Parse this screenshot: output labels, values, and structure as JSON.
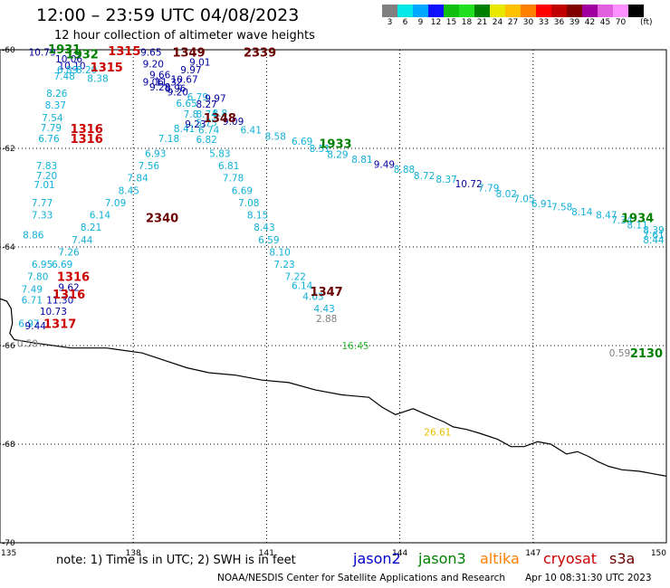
{
  "header": {
    "title": "12:00 – 23:59 UTC 04/08/2023",
    "subtitle": "12 hour collection of altimeter wave heights"
  },
  "color_scale": {
    "unit": "(ft)",
    "swatches": [
      {
        "color": "#808080",
        "label": "3"
      },
      {
        "color": "#00e8e8",
        "label": "6"
      },
      {
        "color": "#00a8ff",
        "label": "9"
      },
      {
        "color": "#1010ff",
        "label": "12"
      },
      {
        "color": "#10c010",
        "label": "15"
      },
      {
        "color": "#20e020",
        "label": "18"
      },
      {
        "color": "#008000",
        "label": "21"
      },
      {
        "color": "#e8e800",
        "label": "24"
      },
      {
        "color": "#ffc000",
        "label": "27"
      },
      {
        "color": "#ff8000",
        "label": "30"
      },
      {
        "color": "#ff0000",
        "label": "33"
      },
      {
        "color": "#c00000",
        "label": "36"
      },
      {
        "color": "#800000",
        "label": "39"
      },
      {
        "color": "#a000a0",
        "label": "42"
      },
      {
        "color": "#e060e0",
        "label": "45"
      },
      {
        "color": "#ff90ff",
        "label": "70"
      },
      {
        "color": "#000000",
        "label": ""
      }
    ]
  },
  "axes": {
    "lat_labels": [
      "-60",
      "-62",
      "-64",
      "-66",
      "-68",
      "-70"
    ],
    "lon_labels": [
      "135",
      "138",
      "141",
      "144",
      "147",
      "150"
    ]
  },
  "map_data": {
    "lon_range": [
      135,
      150
    ],
    "lat_range": [
      -70,
      -60
    ],
    "colors": {
      "jason2": "#0000a0",
      "jason3": "#008000",
      "altika": "#ff8000",
      "cryosat": "#cc0000",
      "s3a": "#6b0000",
      "swh_cyan": "#10b0d8",
      "swh_gray": "#808080",
      "swh_green": "#30c030",
      "swh_yellow": "#e8c000"
    },
    "observations": [
      {
        "lon": 135.95,
        "lat": -60.05,
        "text": "10.79",
        "color": "#0000a0"
      },
      {
        "lon": 136.55,
        "lat": -60.18,
        "text": "10.06",
        "color": "#0000a0"
      },
      {
        "lon": 136.62,
        "lat": -60.32,
        "text": "10.10",
        "color": "#0000a0"
      },
      {
        "lon": 136.52,
        "lat": -60.4,
        "text": "6.89",
        "color": "#10b0d8"
      },
      {
        "lon": 136.45,
        "lat": -60.53,
        "text": "7.48",
        "color": "#10b0d8"
      },
      {
        "lon": 136.28,
        "lat": -60.88,
        "text": "8.26",
        "color": "#10b0d8"
      },
      {
        "lon": 136.25,
        "lat": -61.12,
        "text": "8.37",
        "color": "#10b0d8"
      },
      {
        "lon": 136.18,
        "lat": -61.38,
        "text": "7.54",
        "color": "#10b0d8"
      },
      {
        "lon": 136.15,
        "lat": -61.58,
        "text": "7.79",
        "color": "#10b0d8"
      },
      {
        "lon": 136.1,
        "lat": -61.8,
        "text": "6.76",
        "color": "#10b0d8"
      },
      {
        "lon": 136.05,
        "lat": -62.35,
        "text": "7.83",
        "color": "#10b0d8"
      },
      {
        "lon": 136.05,
        "lat": -62.55,
        "text": "7.20",
        "color": "#10b0d8"
      },
      {
        "lon": 136.0,
        "lat": -62.73,
        "text": "7.01",
        "color": "#10b0d8"
      },
      {
        "lon": 135.95,
        "lat": -63.1,
        "text": "7.77",
        "color": "#10b0d8"
      },
      {
        "lon": 135.95,
        "lat": -63.35,
        "text": "7.33",
        "color": "#10b0d8"
      },
      {
        "lon": 135.75,
        "lat": -63.75,
        "text": "8.86",
        "color": "#10b0d8"
      },
      {
        "lon": 135.95,
        "lat": -64.35,
        "text": "6.95",
        "color": "#10b0d8"
      },
      {
        "lon": 135.85,
        "lat": -64.6,
        "text": "7.80",
        "color": "#10b0d8"
      },
      {
        "lon": 135.72,
        "lat": -64.85,
        "text": "7.49",
        "color": "#10b0d8"
      },
      {
        "lon": 135.72,
        "lat": -65.07,
        "text": "6.71",
        "color": "#10b0d8"
      },
      {
        "lon": 136.55,
        "lat": -64.82,
        "text": "9.62",
        "color": "#0000a0"
      },
      {
        "lon": 136.35,
        "lat": -65.07,
        "text": "11.30",
        "color": "#0000a0"
      },
      {
        "lon": 136.2,
        "lat": -65.3,
        "text": "10.73",
        "color": "#0000a0"
      },
      {
        "lon": 135.65,
        "lat": -65.55,
        "text": "6.97",
        "color": "#10b0d8"
      },
      {
        "lon": 135.8,
        "lat": -65.6,
        "text": "9.44",
        "color": "#0000a0"
      },
      {
        "lon": 135.62,
        "lat": -65.95,
        "text": "0.59",
        "color": "#808080"
      },
      {
        "lon": 136.95,
        "lat": -60.4,
        "text": "8.20",
        "color": "#10b0d8"
      },
      {
        "lon": 137.2,
        "lat": -60.58,
        "text": "8.38",
        "color": "#10b0d8"
      },
      {
        "lon": 138.4,
        "lat": -60.05,
        "text": "9.65",
        "color": "#0000a0"
      },
      {
        "lon": 138.45,
        "lat": -60.28,
        "text": "9.20",
        "color": "#0000a0"
      },
      {
        "lon": 138.6,
        "lat": -60.5,
        "text": "9.66",
        "color": "#0000a0"
      },
      {
        "lon": 138.45,
        "lat": -60.65,
        "text": "9.06",
        "color": "#0000a0"
      },
      {
        "lon": 138.8,
        "lat": -60.65,
        "text": "11.32",
        "color": "#0000a0"
      },
      {
        "lon": 138.6,
        "lat": -60.75,
        "text": "9.28",
        "color": "#0000a0"
      },
      {
        "lon": 139.0,
        "lat": -60.85,
        "text": "9.20",
        "color": "#0000a0"
      },
      {
        "lon": 139.45,
        "lat": -60.95,
        "text": "6.79",
        "color": "#10b0d8"
      },
      {
        "lon": 139.2,
        "lat": -61.08,
        "text": "6.65",
        "color": "#10b0d8"
      },
      {
        "lon": 139.65,
        "lat": -61.1,
        "text": "8.27",
        "color": "#0000a0"
      },
      {
        "lon": 139.3,
        "lat": -61.3,
        "text": "7.8",
        "color": "#10b0d8"
      },
      {
        "lon": 139.65,
        "lat": -61.3,
        "text": "8.74",
        "color": "#10b0d8"
      },
      {
        "lon": 139.95,
        "lat": -61.28,
        "text": "8.8",
        "color": "#10b0d8"
      },
      {
        "lon": 139.15,
        "lat": -61.6,
        "text": "8.41",
        "color": "#10b0d8"
      },
      {
        "lon": 139.4,
        "lat": -61.5,
        "text": "9.23",
        "color": "#0000a0"
      },
      {
        "lon": 139.65,
        "lat": -61.48,
        "text": "5.75",
        "color": "#10b0d8"
      },
      {
        "lon": 139.7,
        "lat": -61.62,
        "text": "6.74",
        "color": "#10b0d8"
      },
      {
        "lon": 138.8,
        "lat": -61.8,
        "text": "7.18",
        "color": "#10b0d8"
      },
      {
        "lon": 139.65,
        "lat": -61.82,
        "text": "6.82",
        "color": "#10b0d8"
      },
      {
        "lon": 138.5,
        "lat": -62.1,
        "text": "6.93",
        "color": "#10b0d8"
      },
      {
        "lon": 139.95,
        "lat": -62.1,
        "text": "5.83",
        "color": "#10b0d8"
      },
      {
        "lon": 138.35,
        "lat": -62.35,
        "text": "7.56",
        "color": "#10b0d8"
      },
      {
        "lon": 140.15,
        "lat": -62.35,
        "text": "6.81",
        "color": "#10b0d8"
      },
      {
        "lon": 138.1,
        "lat": -62.6,
        "text": "7.84",
        "color": "#10b0d8"
      },
      {
        "lon": 140.25,
        "lat": -62.6,
        "text": "7.78",
        "color": "#10b0d8"
      },
      {
        "lon": 137.9,
        "lat": -62.85,
        "text": "8.45",
        "color": "#10b0d8"
      },
      {
        "lon": 140.45,
        "lat": -62.85,
        "text": "6.69",
        "color": "#10b0d8"
      },
      {
        "lon": 137.6,
        "lat": -63.1,
        "text": "7.09",
        "color": "#10b0d8"
      },
      {
        "lon": 140.6,
        "lat": -63.1,
        "text": "7.08",
        "color": "#10b0d8"
      },
      {
        "lon": 137.25,
        "lat": -63.35,
        "text": "6.14",
        "color": "#10b0d8"
      },
      {
        "lon": 140.8,
        "lat": -63.35,
        "text": "8.15",
        "color": "#10b0d8"
      },
      {
        "lon": 137.05,
        "lat": -63.6,
        "text": "8.21",
        "color": "#10b0d8"
      },
      {
        "lon": 140.95,
        "lat": -63.6,
        "text": "8.43",
        "color": "#10b0d8"
      },
      {
        "lon": 136.85,
        "lat": -63.85,
        "text": "7.44",
        "color": "#10b0d8"
      },
      {
        "lon": 141.05,
        "lat": -63.85,
        "text": "6.59",
        "color": "#10b0d8"
      },
      {
        "lon": 136.55,
        "lat": -64.1,
        "text": "7.26",
        "color": "#10b0d8"
      },
      {
        "lon": 141.3,
        "lat": -64.1,
        "text": "8.10",
        "color": "#10b0d8"
      },
      {
        "lon": 136.4,
        "lat": -64.35,
        "text": "6.69",
        "color": "#10b0d8"
      },
      {
        "lon": 141.4,
        "lat": -64.35,
        "text": "7.23",
        "color": "#10b0d8"
      },
      {
        "lon": 141.65,
        "lat": -64.6,
        "text": "7.22",
        "color": "#10b0d8"
      },
      {
        "lon": 141.8,
        "lat": -64.78,
        "text": "6.14",
        "color": "#10b0d8"
      },
      {
        "lon": 142.05,
        "lat": -65.0,
        "text": "4.63",
        "color": "#10b0d8"
      },
      {
        "lon": 142.3,
        "lat": -65.25,
        "text": "4.43",
        "color": "#10b0d8"
      },
      {
        "lon": 142.35,
        "lat": -65.45,
        "text": "2.88",
        "color": "#808080"
      },
      {
        "lon": 139.5,
        "lat": -60.25,
        "text": "9.01",
        "color": "#0000a0"
      },
      {
        "lon": 139.3,
        "lat": -60.4,
        "text": "9.97",
        "color": "#0000a0"
      },
      {
        "lon": 139.15,
        "lat": -60.6,
        "text": "10.67",
        "color": "#0000a0"
      },
      {
        "lon": 138.95,
        "lat": -60.78,
        "text": "8.96",
        "color": "#0000a0"
      },
      {
        "lon": 139.85,
        "lat": -60.98,
        "text": "9.97",
        "color": "#0000a0"
      },
      {
        "lon": 140.25,
        "lat": -61.45,
        "text": "9.09",
        "color": "#0000a0"
      },
      {
        "lon": 140.65,
        "lat": -61.62,
        "text": "6.41",
        "color": "#10b0d8"
      },
      {
        "lon": 141.2,
        "lat": -61.75,
        "text": "8.58",
        "color": "#10b0d8"
      },
      {
        "lon": 141.8,
        "lat": -61.85,
        "text": "6.69",
        "color": "#10b0d8"
      },
      {
        "lon": 142.2,
        "lat": -62.0,
        "text": "8.51",
        "color": "#10b0d8"
      },
      {
        "lon": 142.6,
        "lat": -62.12,
        "text": "8.29",
        "color": "#10b0d8"
      },
      {
        "lon": 143.15,
        "lat": -62.22,
        "text": "8.81",
        "color": "#10b0d8"
      },
      {
        "lon": 143.65,
        "lat": -62.32,
        "text": "9.49",
        "color": "#0000a0"
      },
      {
        "lon": 144.1,
        "lat": -62.42,
        "text": "8.88",
        "color": "#10b0d8"
      },
      {
        "lon": 144.55,
        "lat": -62.55,
        "text": "8.72",
        "color": "#10b0d8"
      },
      {
        "lon": 145.05,
        "lat": -62.62,
        "text": "8.37",
        "color": "#10b0d8"
      },
      {
        "lon": 145.55,
        "lat": -62.72,
        "text": "10.72",
        "color": "#0000a0"
      },
      {
        "lon": 146.0,
        "lat": -62.8,
        "text": "7.79",
        "color": "#10b0d8"
      },
      {
        "lon": 146.4,
        "lat": -62.92,
        "text": "8.02",
        "color": "#10b0d8"
      },
      {
        "lon": 146.8,
        "lat": -63.02,
        "text": "7.05",
        "color": "#10b0d8"
      },
      {
        "lon": 147.2,
        "lat": -63.12,
        "text": "6.91",
        "color": "#10b0d8"
      },
      {
        "lon": 147.65,
        "lat": -63.18,
        "text": "7.58",
        "color": "#10b0d8"
      },
      {
        "lon": 148.1,
        "lat": -63.28,
        "text": "8.14",
        "color": "#10b0d8"
      },
      {
        "lon": 148.65,
        "lat": -63.35,
        "text": "8.47",
        "color": "#10b0d8"
      },
      {
        "lon": 149.0,
        "lat": -63.45,
        "text": "7.34",
        "color": "#10b0d8"
      },
      {
        "lon": 149.35,
        "lat": -63.55,
        "text": "8.11",
        "color": "#10b0d8"
      },
      {
        "lon": 149.75,
        "lat": -63.65,
        "text": "8.39",
        "color": "#10b0d8"
      },
      {
        "lon": 150.1,
        "lat": -63.75,
        "text": "7.61",
        "color": "#10b0d8"
      },
      {
        "lon": 150.48,
        "lat": -63.85,
        "text": "8.44",
        "color": "#10b0d8"
      },
      {
        "lon": 143.0,
        "lat": -66.0,
        "text": "16.45",
        "color": "#30c030"
      },
      {
        "lon": 144.85,
        "lat": -67.75,
        "text": "26.61",
        "color": "#e8c000"
      },
      {
        "lon": 148.95,
        "lat": -66.15,
        "text": "0.59",
        "color": "#808080"
      }
    ],
    "time_labels": [
      {
        "lon": 136.45,
        "lat": -59.98,
        "text": "1931",
        "color": "#008000"
      },
      {
        "lon": 136.85,
        "lat": -60.08,
        "text": "1932",
        "color": "#008000"
      },
      {
        "lon": 137.8,
        "lat": -60.02,
        "text": "1315",
        "color": "#cc0000"
      },
      {
        "lon": 137.4,
        "lat": -60.35,
        "text": "1315",
        "color": "#cc0000"
      },
      {
        "lon": 136.95,
        "lat": -61.8,
        "text": "1316",
        "color": "#cc0000"
      },
      {
        "lon": 136.95,
        "lat": -61.6,
        "text": "1316",
        "color": "#cc0000"
      },
      {
        "lon": 139.25,
        "lat": -60.05,
        "text": "1349",
        "color": "#6b0000"
      },
      {
        "lon": 139.95,
        "lat": -61.38,
        "text": "1348",
        "color": "#6b0000"
      },
      {
        "lon": 140.85,
        "lat": -60.05,
        "text": "2339",
        "color": "#6b0000"
      },
      {
        "lon": 138.65,
        "lat": -63.4,
        "text": "2340",
        "color": "#6b0000"
      },
      {
        "lon": 142.35,
        "lat": -64.9,
        "text": "1347",
        "color": "#6b0000"
      },
      {
        "lon": 142.55,
        "lat": -61.9,
        "text": "1933",
        "color": "#008000"
      },
      {
        "lon": 149.35,
        "lat": -63.4,
        "text": "1934",
        "color": "#008000"
      },
      {
        "lon": 149.55,
        "lat": -66.15,
        "text": "2130",
        "color": "#008000"
      },
      {
        "lon": 136.65,
        "lat": -64.6,
        "text": "1316",
        "color": "#cc0000"
      },
      {
        "lon": 136.55,
        "lat": -64.95,
        "text": "1316",
        "color": "#cc0000"
      },
      {
        "lon": 136.35,
        "lat": -65.55,
        "text": "1317",
        "color": "#cc0000"
      }
    ]
  },
  "footer": {
    "note": "note: 1) Time is in UTC; 2) SWH is in feet",
    "satellites": [
      {
        "name": "jason2",
        "color": "#0000cc"
      },
      {
        "name": "jason3",
        "color": "#008000"
      },
      {
        "name": "altika",
        "color": "#ff8000"
      },
      {
        "name": "cryosat",
        "color": "#cc0000"
      },
      {
        "name": "s3a",
        "color": "#6b0000"
      }
    ],
    "credit": "NOAA/NESDIS Center for Satellite Applications and Research",
    "timestamp": "Apr 10 08:31:30 UTC 2023"
  }
}
